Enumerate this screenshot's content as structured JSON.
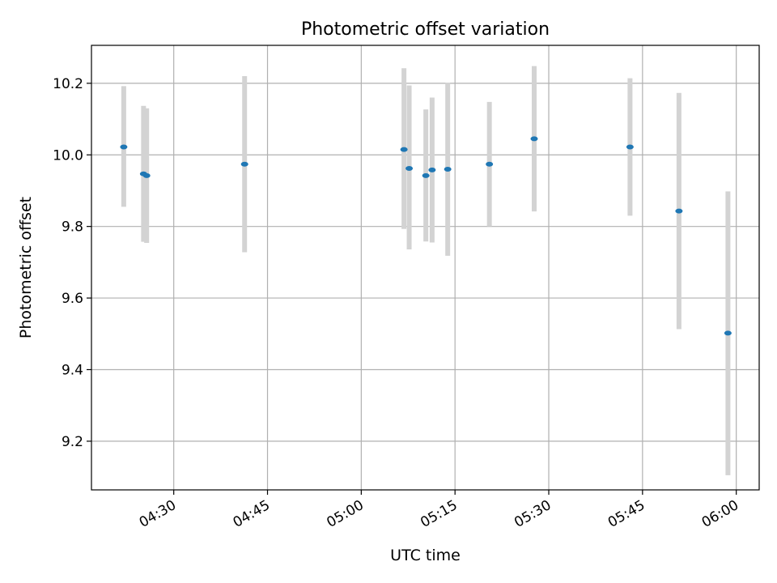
{
  "chart_data": {
    "type": "scatter",
    "title": "Photometric offset variation",
    "xlabel": "UTC time",
    "ylabel": "Photometric offset",
    "x_unit": "UTC time (hh:mm)",
    "xlim": [
      "04:16:50",
      "06:03:40"
    ],
    "ylim": [
      9.064,
      10.306
    ],
    "x_ticks": [
      "04:30",
      "04:45",
      "05:00",
      "05:15",
      "05:30",
      "05:45",
      "06:00"
    ],
    "y_ticks": [
      9.2,
      9.4,
      9.6,
      9.8,
      10.0,
      10.2
    ],
    "grid": true,
    "legend": "none",
    "colors": {
      "point": "#1f77b4",
      "errorbar": "#d3d3d3",
      "grid": "#b0b0b0"
    },
    "series": [
      {
        "points": [
          {
            "t": "04:22:00",
            "y": 10.022,
            "yerr_low": 9.855,
            "yerr_high": 10.192
          },
          {
            "t": "04:25:10",
            "y": 9.947,
            "yerr_low": 9.757,
            "yerr_high": 10.137
          },
          {
            "t": "04:25:40",
            "y": 9.942,
            "yerr_low": 9.754,
            "yerr_high": 10.13
          },
          {
            "t": "04:41:20",
            "y": 9.974,
            "yerr_low": 9.728,
            "yerr_high": 10.22
          },
          {
            "t": "05:06:50",
            "y": 10.015,
            "yerr_low": 9.793,
            "yerr_high": 10.242
          },
          {
            "t": "05:07:40",
            "y": 9.962,
            "yerr_low": 9.736,
            "yerr_high": 10.194
          },
          {
            "t": "05:10:20",
            "y": 9.942,
            "yerr_low": 9.758,
            "yerr_high": 10.127
          },
          {
            "t": "05:11:20",
            "y": 9.958,
            "yerr_low": 9.755,
            "yerr_high": 10.16
          },
          {
            "t": "05:13:50",
            "y": 9.96,
            "yerr_low": 9.718,
            "yerr_high": 10.202
          },
          {
            "t": "05:20:30",
            "y": 9.974,
            "yerr_low": 9.8,
            "yerr_high": 10.148
          },
          {
            "t": "05:27:40",
            "y": 10.045,
            "yerr_low": 9.842,
            "yerr_high": 10.248
          },
          {
            "t": "05:43:00",
            "y": 10.022,
            "yerr_low": 9.83,
            "yerr_high": 10.214
          },
          {
            "t": "05:50:50",
            "y": 9.843,
            "yerr_low": 9.513,
            "yerr_high": 10.173
          },
          {
            "t": "05:58:40",
            "y": 9.502,
            "yerr_low": 9.105,
            "yerr_high": 9.898
          }
        ]
      }
    ]
  }
}
